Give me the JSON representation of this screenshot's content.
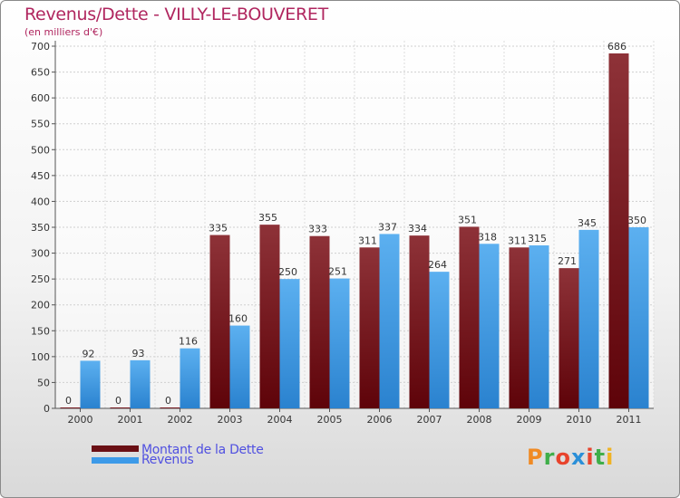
{
  "title": "Revenus/Dette - VILLY-LE-BOUVERET",
  "subtitle": "(en milliers d'€)",
  "logo_text": "Proxiti",
  "logo_colors": [
    "#f08a24",
    "#3fae49",
    "#e8432c",
    "#2a8fd8",
    "#e8432c",
    "#3fae49",
    "#f0b323"
  ],
  "colors": {
    "debt": "#6a0f14",
    "debt_light": "#8e3238",
    "revenue": "#2f8ad8",
    "revenue_light": "#5cb0f0",
    "title": "#b0265f",
    "legend_text": "#5050e0",
    "axis_text": "#333333"
  },
  "chart_data": {
    "type": "bar",
    "title": "Revenus/Dette - VILLY-LE-BOUVERET",
    "ylabel": "(en milliers d'€)",
    "xlabel": "",
    "ylim": [
      0,
      700
    ],
    "yticks": [
      0,
      50,
      100,
      150,
      200,
      250,
      300,
      350,
      400,
      450,
      500,
      550,
      600,
      650,
      700
    ],
    "grid": true,
    "categories": [
      "2000",
      "2001",
      "2002",
      "2003",
      "2004",
      "2005",
      "2006",
      "2007",
      "2008",
      "2009",
      "2010",
      "2011"
    ],
    "series": [
      {
        "name": "Montant de la Dette",
        "values": [
          0,
          0,
          0,
          335,
          355,
          333,
          311,
          334,
          351,
          311,
          271,
          686
        ]
      },
      {
        "name": "Revenus",
        "values": [
          92,
          93,
          116,
          160,
          250,
          251,
          337,
          264,
          318,
          315,
          345,
          350
        ]
      }
    ],
    "legend": "bottom-left"
  }
}
